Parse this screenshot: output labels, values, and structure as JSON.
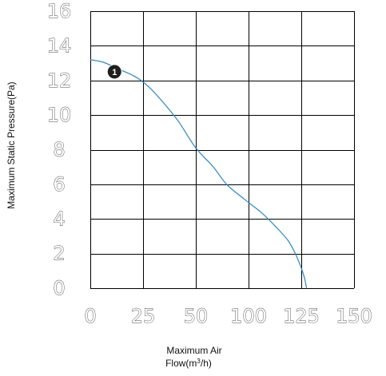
{
  "chart_data": {
    "type": "line",
    "title": "",
    "xlabel": "Maximum Air",
    "xlabel_line2_base": "Flow(m",
    "xlabel_line2_sup": "3",
    "xlabel_line2_tail": "/h)",
    "ylabel": "Maximum Static Pressure(Pa)",
    "x_ticks": [
      "0",
      "25",
      "50",
      "100",
      "125",
      "150"
    ],
    "y_ticks": [
      "0",
      "2",
      "4",
      "6",
      "8",
      "10",
      "12",
      "14",
      "16"
    ],
    "xlim": [
      0,
      6
    ],
    "ylim": [
      0,
      16
    ],
    "grid": true,
    "series": [
      {
        "color": "#2e86c1",
        "points": [
          [
            0,
            13.2
          ],
          [
            0.3,
            13.05
          ],
          [
            0.6,
            12.7
          ],
          [
            1,
            12.25
          ],
          [
            1.3,
            11.7
          ],
          [
            1.6,
            10.9
          ],
          [
            2,
            9.65
          ],
          [
            2.4,
            8.1
          ],
          [
            2.8,
            7.0
          ],
          [
            3.1,
            6.0
          ],
          [
            3.5,
            5.15
          ],
          [
            3.9,
            4.35
          ],
          [
            4.2,
            3.6
          ],
          [
            4.5,
            2.75
          ],
          [
            4.7,
            1.8
          ],
          [
            4.85,
            0.8
          ],
          [
            4.92,
            0
          ]
        ]
      }
    ],
    "annotations": [
      {
        "text": "1",
        "x": 0.55,
        "y": 12.5
      }
    ]
  }
}
